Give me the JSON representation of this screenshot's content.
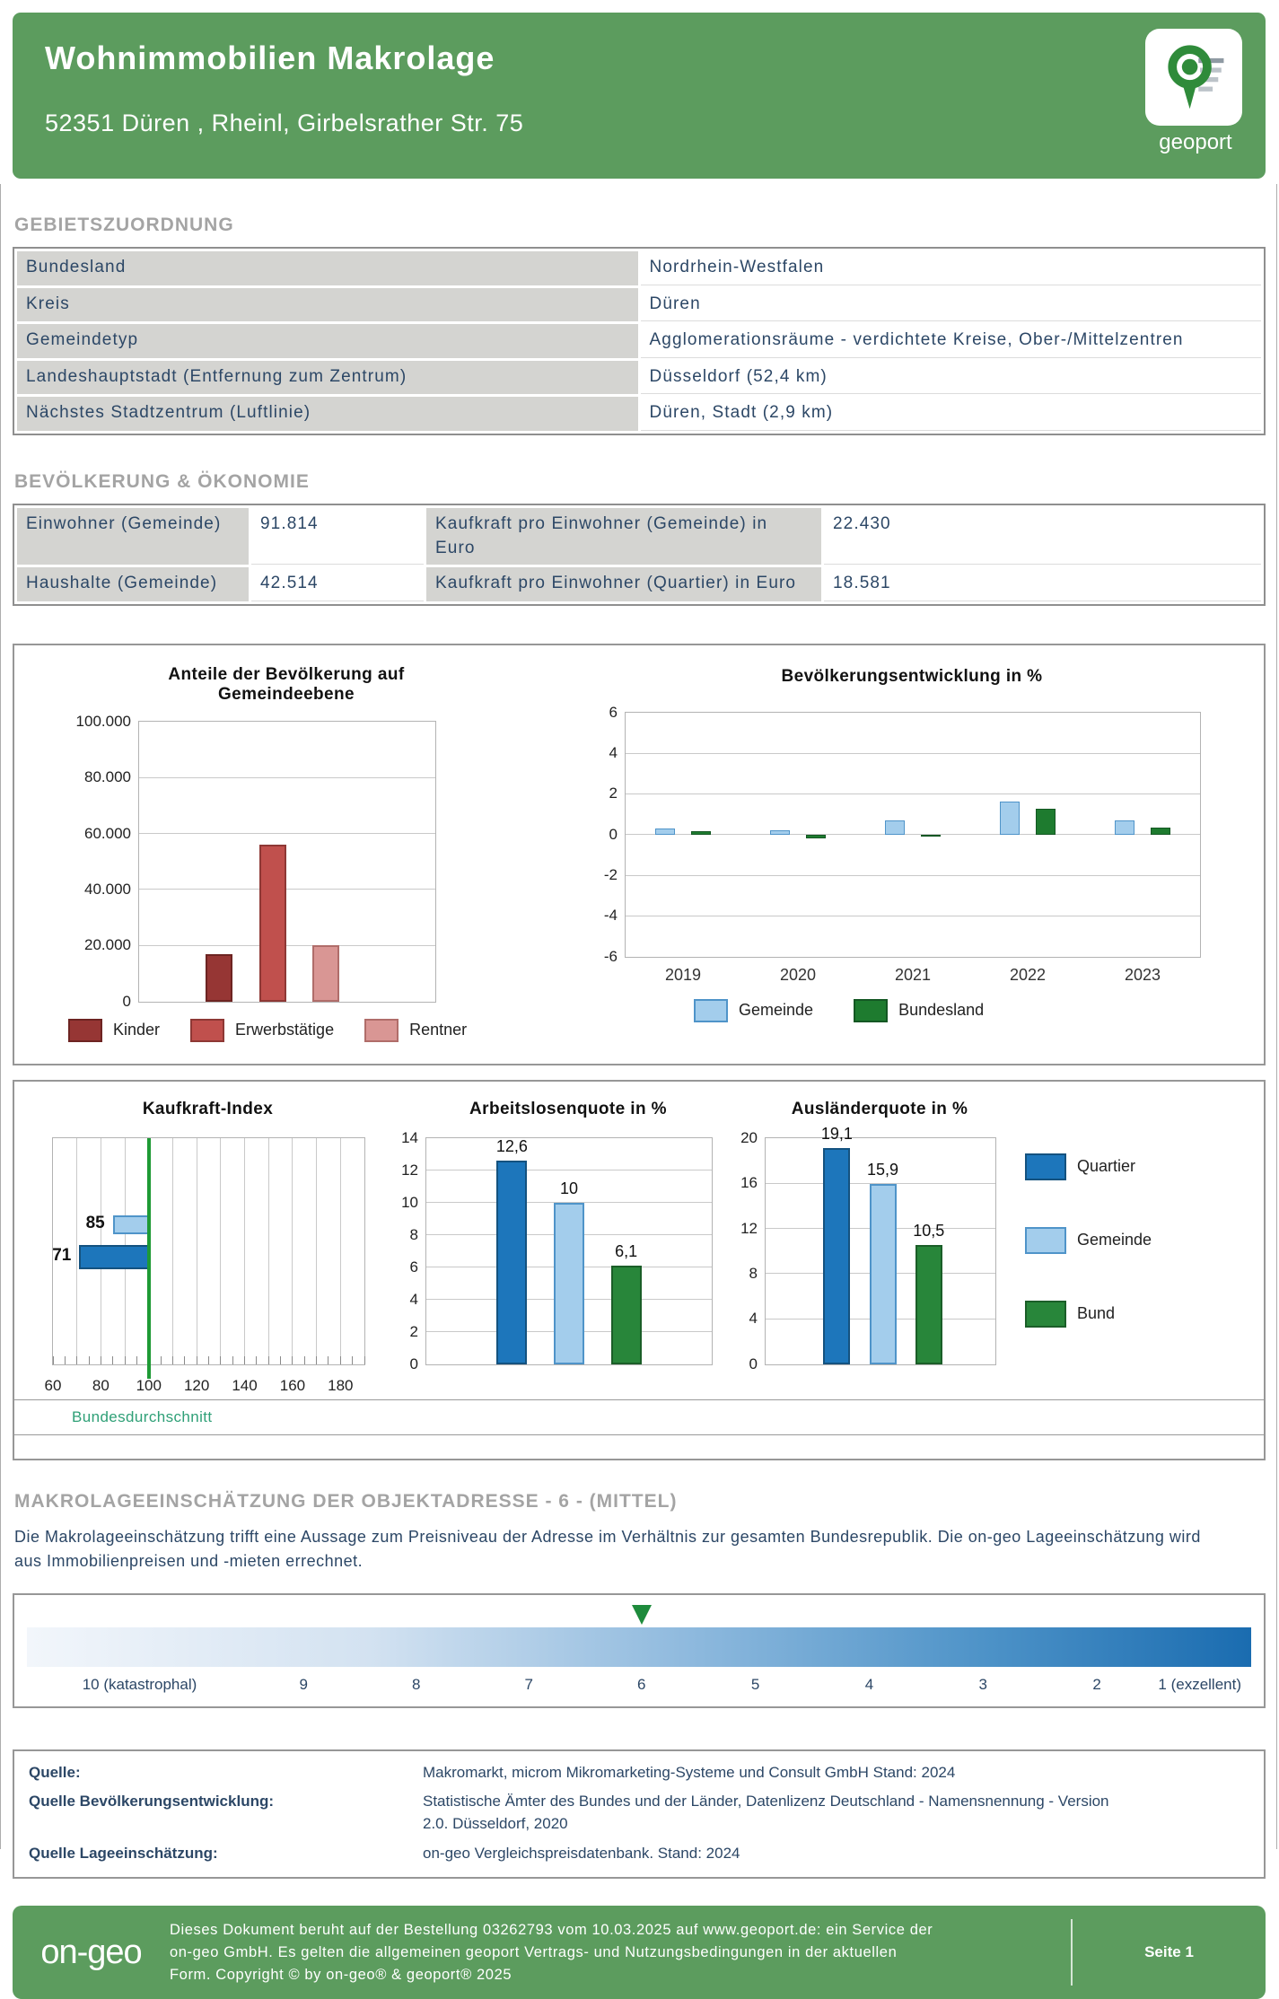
{
  "header": {
    "title": "Wohnimmobilien Makrolage",
    "address": "52351 Düren , Rheinl, Girbelsrather Str. 75",
    "logo_label": "geoport"
  },
  "sections": {
    "gebietszuordnung": {
      "heading": "GEBIETSZUORDNUNG",
      "rows": [
        {
          "label": "Bundesland",
          "value": "Nordrhein-Westfalen"
        },
        {
          "label": "Kreis",
          "value": "Düren"
        },
        {
          "label": "Gemeindetyp",
          "value": "Agglomerationsräume - verdichtete Kreise, Ober-/Mittelzentren"
        },
        {
          "label": "Landeshauptstadt (Entfernung zum Zentrum)",
          "value": "Düsseldorf (52,4 km)"
        },
        {
          "label": "Nächstes Stadtzentrum (Luftlinie)",
          "value": "Düren, Stadt (2,9 km)"
        }
      ]
    },
    "bevoelkerung": {
      "heading": "BEVÖLKERUNG & ÖKONOMIE",
      "rows": [
        {
          "label1": "Einwohner (Gemeinde)",
          "value1": "91.814",
          "label2": "Kaufkraft pro Einwohner (Gemeinde) in Euro",
          "value2": "22.430"
        },
        {
          "label1": "Haushalte (Gemeinde)",
          "value1": "42.514",
          "label2": "Kaufkraft pro Einwohner (Quartier) in Euro",
          "value2": "18.581"
        }
      ]
    },
    "makrolage": {
      "heading": "MAKROLAGEEINSCHÄTZUNG DER OBJEKTADRESSE - 6 - (MITTEL)",
      "description": "Die Makrolageeinschätzung trifft eine Aussage zum Preisniveau der Adresse im Verhältnis zur gesamten Bundesrepublik. Die on-geo Lageeinschätzung wird aus Immobilienpreisen und -mieten errechnet.",
      "scale": {
        "labels": [
          "10 (katastrophal)",
          "9",
          "8",
          "7",
          "6",
          "5",
          "4",
          "3",
          "2",
          "1 (exzellent)"
        ],
        "marker_index": 4,
        "marker_color": "#1e8b3c",
        "gradient_from": "#f2f6fb",
        "gradient_to": "#1a6cb0"
      }
    },
    "quellen": {
      "rows": [
        {
          "label": "Quelle:",
          "value": "Makromarkt, microm Mikromarketing-Systeme und Consult GmbH Stand: 2024"
        },
        {
          "label": "Quelle Bevölkerungsentwicklung:",
          "value": "Statistische Ämter des Bundes und der Länder, Datenlizenz Deutschland - Namensnennung - Version 2.0. Düsseldorf, 2020"
        },
        {
          "label": "Quelle Lageeinschätzung:",
          "value": "on-geo Vergleichspreisdatenbank. Stand: 2024"
        }
      ]
    }
  },
  "chart_data": [
    {
      "id": "population-shares",
      "type": "bar",
      "title": "Anteile der Bevölkerung auf Gemeindeebene",
      "categories": [
        "Kinder",
        "Erwerbstätige",
        "Rentner"
      ],
      "values": [
        17000,
        56000,
        20000
      ],
      "colors": [
        "#963634",
        "#c0504d",
        "#d99694"
      ],
      "border_colors": [
        "#6d2422",
        "#8e3835",
        "#b06d6a"
      ],
      "ylim": [
        0,
        100000
      ],
      "ytick": 20000,
      "ytick_labels": [
        "0",
        "20.000",
        "40.000",
        "60.000",
        "80.000",
        "100.000"
      ],
      "legend_position": "bottom"
    },
    {
      "id": "population-development",
      "type": "bar",
      "title": "Bevölkerungsentwicklung in %",
      "categories": [
        "2019",
        "2020",
        "2021",
        "2022",
        "2023"
      ],
      "series": [
        {
          "name": "Gemeinde",
          "color": "#a3cdec",
          "border": "#4f94c9",
          "values": [
            0.3,
            0.2,
            0.7,
            1.6,
            0.7
          ]
        },
        {
          "name": "Bundesland",
          "color": "#1e7b2f",
          "border": "#145723",
          "values": [
            0.15,
            -0.2,
            -0.05,
            1.25,
            0.35
          ]
        }
      ],
      "ylim": [
        -6,
        6
      ],
      "ytick": 2,
      "ytick_labels": [
        "-6",
        "-4",
        "-2",
        "0",
        "2",
        "4",
        "6"
      ],
      "legend_position": "bottom"
    },
    {
      "id": "kaufkraft-index",
      "type": "horizontal-bar",
      "title": "Kaufkraft-Index",
      "bars": [
        {
          "label": "85",
          "value": 85,
          "color": "#a3cdec",
          "border": "#4f94c9"
        },
        {
          "label": "71",
          "value": 71,
          "color": "#1d76bb",
          "border": "#14527f"
        }
      ],
      "baseline": 100,
      "xlim": [
        60,
        190
      ],
      "xticks": [
        60,
        80,
        100,
        120,
        140,
        160,
        180
      ],
      "reference_label": "Bundesdurchschnitt",
      "reference_color": "#1e9a35"
    },
    {
      "id": "arbeitslosenquote",
      "type": "bar",
      "title": "Arbeitslosenquote in %",
      "categories": [
        "Quartier",
        "Gemeinde",
        "Bund"
      ],
      "values": [
        12.6,
        10,
        6.1
      ],
      "value_labels": [
        "12,6",
        "10",
        "6,1"
      ],
      "colors": [
        "#1d76bb",
        "#a3cdec",
        "#28863a"
      ],
      "border_colors": [
        "#14527f",
        "#4f94c9",
        "#1b5e28"
      ],
      "ylim": [
        0,
        14
      ],
      "ytick": 2,
      "ytick_labels": [
        "0",
        "2",
        "4",
        "6",
        "8",
        "10",
        "12",
        "14"
      ]
    },
    {
      "id": "auslaenderquote",
      "type": "bar",
      "title": "Ausländerquote in %",
      "categories": [
        "Quartier",
        "Gemeinde",
        "Bund"
      ],
      "values": [
        19.1,
        15.9,
        10.5
      ],
      "value_labels": [
        "19,1",
        "15,9",
        "10,5"
      ],
      "colors": [
        "#1d76bb",
        "#a3cdec",
        "#28863a"
      ],
      "border_colors": [
        "#14527f",
        "#4f94c9",
        "#1b5e28"
      ],
      "ylim": [
        0,
        20
      ],
      "ytick": 4,
      "ytick_labels": [
        "0",
        "4",
        "8",
        "12",
        "16",
        "20"
      ]
    }
  ],
  "panel2_legend": [
    {
      "label": "Quartier",
      "color": "#1d76bb",
      "border": "#14527f"
    },
    {
      "label": "Gemeinde",
      "color": "#a3cdec",
      "border": "#4f94c9"
    },
    {
      "label": "Bund",
      "color": "#28863a",
      "border": "#1b5e28"
    }
  ],
  "footer": {
    "logo": "on-geo",
    "text": "Dieses Dokument beruht auf der Bestellung 03262793 vom 10.03.2025 auf www.geoport.de: ein Service der on-geo GmbH. Es gelten die allgemeinen geoport Vertrags- und Nutzungsbedingungen in der aktuellen Form. Copyright © by on-geo® & geoport® 2025",
    "page": "Seite 1"
  },
  "colors": {
    "brand_green": "#5c9c5e",
    "heading_gray": "#a4a4a4",
    "text_navy": "#2c4766",
    "dark_blue": "#1d76bb",
    "light_blue": "#a3cdec",
    "bar_green": "#28863a",
    "reference_green": "#1e9a35"
  }
}
